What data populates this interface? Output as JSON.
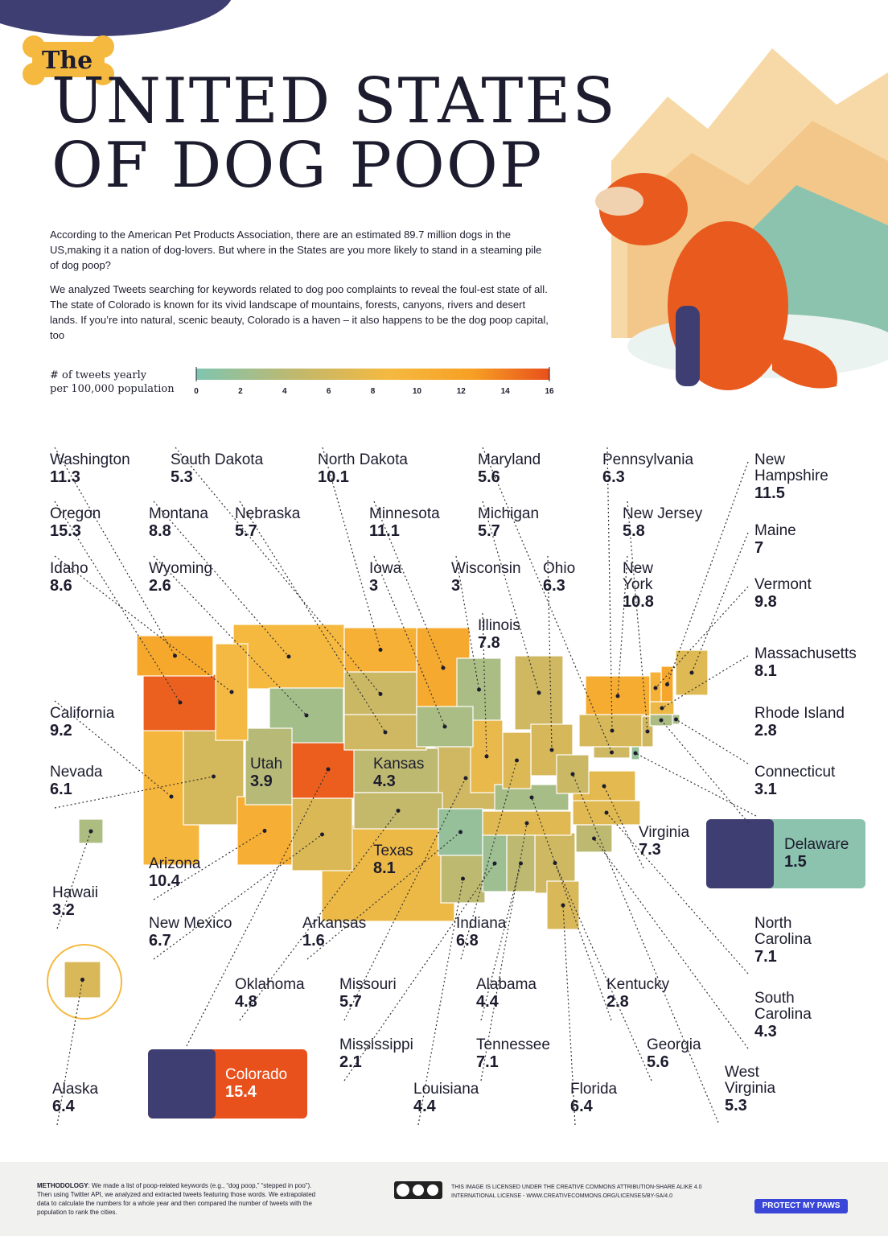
{
  "header": {
    "kicker": "The",
    "title_line1": "UNITED STATES",
    "title_line2": "OF DOG POOP"
  },
  "intro": [
    "According to the American Pet Products Association, there are an estimated 89.7 million dogs in the US,making it a nation of dog-lovers. But where in the States are you more likely to stand in a steaming pile of dog poop?",
    "We analyzed Tweets searching for keywords related to dog poo complaints to reveal the foul-est state of all. The state of Colorado is known for its vivid landscape of mountains, forests, canyons, rivers and desert lands. If you’re into natural, scenic beauty, Colorado is a haven – it also happens to be the dog poop capital, too"
  ],
  "legend": {
    "label_line1": "# of tweets yearly",
    "label_line2": "per 100,000 population",
    "ticks": [
      0,
      2,
      4,
      6,
      8,
      10,
      12,
      14,
      16
    ]
  },
  "states": [
    {
      "name": "Washington",
      "value": 11.3
    },
    {
      "name": "South Dakota",
      "value": 5.3
    },
    {
      "name": "North Dakota",
      "value": 10.1
    },
    {
      "name": "Maryland",
      "value": 5.6
    },
    {
      "name": "Pennsylvania",
      "value": 6.3
    },
    {
      "name": "New Hampshire",
      "value": 11.5
    },
    {
      "name": "Oregon",
      "value": 15.3
    },
    {
      "name": "Montana",
      "value": 8.8
    },
    {
      "name": "Nebraska",
      "value": 5.7
    },
    {
      "name": "Minnesota",
      "value": 11.1
    },
    {
      "name": "Michigan",
      "value": 5.7
    },
    {
      "name": "New Jersey",
      "value": 5.8
    },
    {
      "name": "Maine",
      "value": 7
    },
    {
      "name": "Idaho",
      "value": 8.6
    },
    {
      "name": "Wyoming",
      "value": 2.6
    },
    {
      "name": "Iowa",
      "value": 3
    },
    {
      "name": "Wisconsin",
      "value": 3
    },
    {
      "name": "Ohio",
      "value": 6.3
    },
    {
      "name": "New York",
      "value": 10.8
    },
    {
      "name": "Vermont",
      "value": 9.8
    },
    {
      "name": "Illinois",
      "value": 7.8
    },
    {
      "name": "Massachusetts",
      "value": 8.1
    },
    {
      "name": "California",
      "value": 9.2
    },
    {
      "name": "Rhode Island",
      "value": 2.8
    },
    {
      "name": "Utah",
      "value": 3.9
    },
    {
      "name": "Kansas",
      "value": 4.3
    },
    {
      "name": "Nevada",
      "value": 6.1
    },
    {
      "name": "Connecticut",
      "value": 3.1
    },
    {
      "name": "Virginia",
      "value": 7.3
    },
    {
      "name": "Texas",
      "value": 8.1
    },
    {
      "name": "Arizona",
      "value": 10.4
    },
    {
      "name": "Hawaii",
      "value": 3.2
    },
    {
      "name": "New Mexico",
      "value": 6.7
    },
    {
      "name": "Arkansas",
      "value": 1.6
    },
    {
      "name": "Indiana",
      "value": 6.8
    },
    {
      "name": "North Carolina",
      "value": 7.1
    },
    {
      "name": "Oklahoma",
      "value": 4.8
    },
    {
      "name": "Missouri",
      "value": 5.7
    },
    {
      "name": "Alabama",
      "value": 4.4
    },
    {
      "name": "Kentucky",
      "value": 2.8
    },
    {
      "name": "South Carolina",
      "value": 4.3
    },
    {
      "name": "Mississippi",
      "value": 2.1
    },
    {
      "name": "Tennessee",
      "value": 7.1
    },
    {
      "name": "Georgia",
      "value": 5.6
    },
    {
      "name": "West Virginia",
      "value": 5.3
    },
    {
      "name": "Alaska",
      "value": 6.4
    },
    {
      "name": "Louisiana",
      "value": 4.4
    },
    {
      "name": "Florida",
      "value": 6.4
    },
    {
      "name": "Delaware",
      "value": 1.5
    },
    {
      "name": "Colorado",
      "value": 15.4
    }
  ],
  "footer": {
    "methodology_label": "METHODOLOGY",
    "methodology": ": We made a list of poop-related keywords (e.g., “dog poop,” “stepped in poo”). Then using Twitter API, we analyzed and extracted tweets featuring those words. We extrapolated data to calculate the numbers for a whole year and then compared the number of tweets with the population to rank the cities.",
    "license": "THIS IMAGE IS LICENSED UNDER THE CREATIVE COMMONS ATTRIBUTION-SHARE ALIKE 4.0 INTERNATIONAL LICENSE - WWW.CREATIVECOMMONS.ORG/LICENSES/BY-SA/4.0",
    "brand": "PROTECT MY PAWS"
  }
}
